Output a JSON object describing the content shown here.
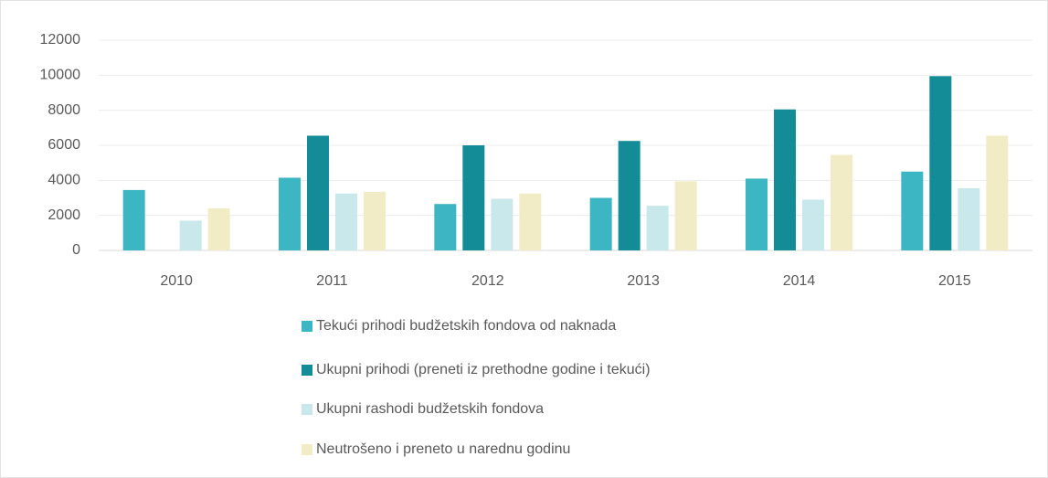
{
  "chart_data": {
    "type": "bar",
    "categories": [
      "2010",
      "2011",
      "2012",
      "2013",
      "2014",
      "2015"
    ],
    "series": [
      {
        "name": "Tekući prihodi budžetskih fondova od naknada",
        "color": "#3bb6c2",
        "values": [
          3450,
          4150,
          2650,
          3000,
          4100,
          4500
        ]
      },
      {
        "name": "Ukupni prihodi (preneti iz prethodne godine i tekući)",
        "color": "#148c98",
        "values": [
          null,
          6550,
          6000,
          6250,
          8050,
          9950
        ]
      },
      {
        "name": "Ukupni rashodi budžetskih fondova",
        "color": "#c8e8ec",
        "values": [
          1700,
          3250,
          2950,
          2550,
          2900,
          3550
        ]
      },
      {
        "name": "Neutrošeno i preneto u narednu godinu",
        "color": "#f1ecc6",
        "values": [
          2400,
          3350,
          3250,
          3950,
          5450,
          6550
        ]
      }
    ],
    "ylim": [
      0,
      12000
    ],
    "yticks": [
      0,
      2000,
      4000,
      6000,
      8000,
      10000,
      12000
    ],
    "grid": true
  }
}
